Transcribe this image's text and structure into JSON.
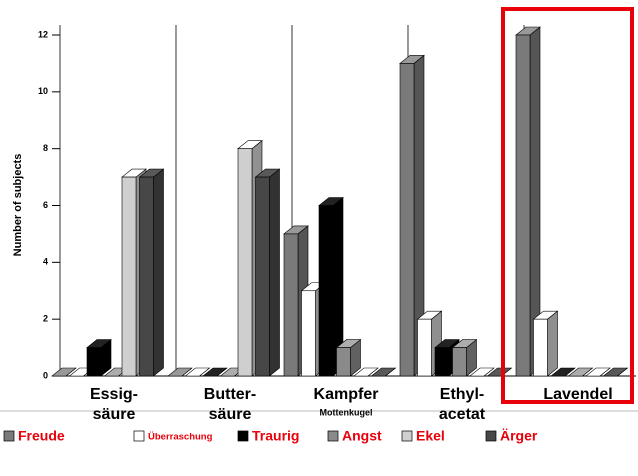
{
  "chart_data": {
    "type": "bar3d",
    "y_label": "Number of subjects",
    "categories": [
      [
        "Essig-",
        "säure"
      ],
      [
        "Butter-",
        "säure"
      ],
      [
        "Kampfer"
      ],
      [
        "Ethyl-",
        "acetat"
      ],
      [
        "Lavendel"
      ]
    ],
    "annotations": [
      {
        "category": 2,
        "text": "Mottenkugel"
      }
    ],
    "series": [
      {
        "name": "Freude",
        "color": "#7a7a7a",
        "values": [
          0,
          0,
          5,
          11,
          12
        ]
      },
      {
        "name": "Überraschung",
        "color": "#ffffff",
        "values": [
          0,
          0,
          3,
          2,
          2
        ]
      },
      {
        "name": "Traurig",
        "color": "#000000",
        "values": [
          1,
          0,
          6,
          1,
          0
        ]
      },
      {
        "name": "Angst",
        "color": "#8a8a8a",
        "values": [
          0,
          0,
          1,
          1,
          0
        ]
      },
      {
        "name": "Ekel",
        "color": "#cfcfcf",
        "values": [
          7,
          8,
          0,
          0,
          0
        ]
      },
      {
        "name": "Ärger",
        "color": "#474747",
        "values": [
          7,
          7,
          0,
          0,
          0
        ]
      }
    ],
    "ylim": [
      0,
      12
    ],
    "yticks": [
      0,
      2,
      4,
      6,
      8,
      10,
      12
    ],
    "legend_color": "#e8000b",
    "highlight_color": "#e8000b"
  }
}
